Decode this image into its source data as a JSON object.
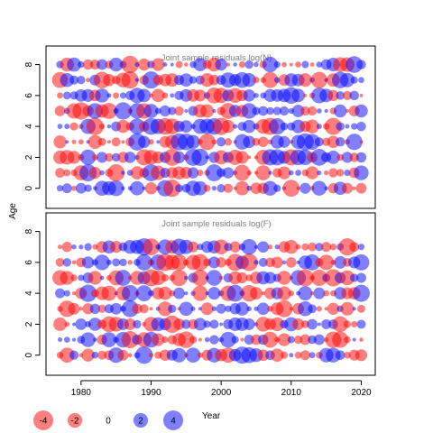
{
  "chart_data": {
    "type": "scatter",
    "subtype": "bubble",
    "ylabel": "Age",
    "years": [
      1977,
      2020
    ],
    "ages": [
      0,
      8
    ],
    "xlim": [
      1975,
      2022
    ],
    "ylim": [
      -1.3,
      9.2
    ],
    "xticks": [
      "1980",
      "1990",
      "2000",
      "2010",
      "2020"
    ],
    "yticks": [
      "0",
      "2",
      "4",
      "6",
      "8"
    ],
    "colors": {
      "positive": "#0000ff",
      "negative": "#ff0000",
      "frame": "#000000",
      "title": "#808080"
    },
    "panels": [
      {
        "title": "Joint sample residuals log(N)",
        "ages": [
          0,
          1,
          2,
          3,
          4,
          5,
          6,
          7,
          8
        ],
        "seed": 17
      },
      {
        "title": "Joint sample residuals log(F)",
        "ages": [
          0,
          1,
          2,
          3,
          4,
          5,
          6,
          7
        ],
        "seed": 53
      }
    ],
    "legend": {
      "title": "Year",
      "entries": [
        {
          "label": "-4",
          "value": -4
        },
        {
          "label": "-2",
          "value": -2
        },
        {
          "label": "0",
          "value": 0
        },
        {
          "label": "2",
          "value": 2
        },
        {
          "label": "4",
          "value": 4
        }
      ]
    }
  }
}
